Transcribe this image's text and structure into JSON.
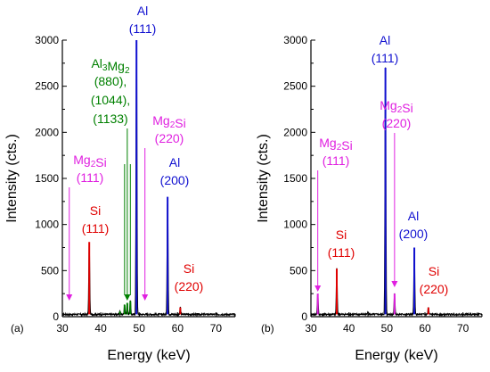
{
  "colors": {
    "spectrum": "#000000",
    "Al": "#1010d0",
    "Si": "#e00000",
    "Mg2Si": "#e020e0",
    "Al3Mg2": "#008000"
  },
  "chart_data": [
    {
      "type": "line",
      "panel_label": "(a)",
      "xlabel": "Energy (keV)",
      "ylabel": "Intensity (cts.)",
      "xlim": [
        30,
        75
      ],
      "ylim": [
        0,
        3000
      ],
      "xticks": [
        30,
        40,
        50,
        60,
        70
      ],
      "yticks": [
        0,
        500,
        1000,
        1500,
        2000,
        2500,
        3000
      ],
      "baseline": 25,
      "peaks": [
        {
          "x": 37.0,
          "y": 810,
          "phase": "Si"
        },
        {
          "x": 45.0,
          "y": 60,
          "phase": "Al3Mg2"
        },
        {
          "x": 46.2,
          "y": 130,
          "phase": "Al3Mg2"
        },
        {
          "x": 46.9,
          "y": 150,
          "phase": "Al3Mg2"
        },
        {
          "x": 47.7,
          "y": 170,
          "phase": "Al3Mg2"
        },
        {
          "x": 49.3,
          "y": 3000,
          "phase": "Al"
        },
        {
          "x": 57.4,
          "y": 1300,
          "phase": "Al"
        },
        {
          "x": 60.7,
          "y": 100,
          "phase": "Si"
        }
      ],
      "annotations": [
        {
          "phase": "Al",
          "label": "Al",
          "sub": "(111)",
          "x": 49.3
        },
        {
          "phase": "Al",
          "label": "Al",
          "sub": "(200)",
          "x": 57.4
        },
        {
          "phase": "Si",
          "label": "Si",
          "sub": "(111)",
          "x": 37.0
        },
        {
          "phase": "Si",
          "label": "Si",
          "sub": "(220)",
          "x": 60.7
        },
        {
          "phase": "Mg2Si",
          "label": "Mg2Si",
          "sub": "(111)",
          "x": 31.8
        },
        {
          "phase": "Mg2Si",
          "label": "Mg2Si",
          "sub": "(220)",
          "x": 51.5
        },
        {
          "phase": "Al3Mg2",
          "label": "Al3Mg2",
          "sub": "(880),\n(1044),\n(1133)",
          "x": 46.9
        }
      ]
    },
    {
      "type": "line",
      "panel_label": "(b)",
      "xlabel": "Energy (keV)",
      "ylabel": "Intensity (cts.)",
      "xlim": [
        30,
        75
      ],
      "ylim": [
        0,
        3000
      ],
      "xticks": [
        30,
        40,
        50,
        60,
        70
      ],
      "yticks": [
        0,
        500,
        1000,
        1500,
        2000,
        2500,
        3000
      ],
      "baseline": 25,
      "peaks": [
        {
          "x": 31.8,
          "y": 250,
          "phase": "Mg2Si"
        },
        {
          "x": 36.8,
          "y": 520,
          "phase": "Si"
        },
        {
          "x": 45.0,
          "y": 60,
          "phase": "none"
        },
        {
          "x": 49.6,
          "y": 2700,
          "phase": "Al"
        },
        {
          "x": 52.0,
          "y": 250,
          "phase": "Mg2Si"
        },
        {
          "x": 57.2,
          "y": 750,
          "phase": "Al"
        },
        {
          "x": 60.9,
          "y": 100,
          "phase": "Si"
        }
      ],
      "annotations": [
        {
          "phase": "Al",
          "label": "Al",
          "sub": "(111)",
          "x": 49.6
        },
        {
          "phase": "Al",
          "label": "Al",
          "sub": "(200)",
          "x": 57.2
        },
        {
          "phase": "Si",
          "label": "Si",
          "sub": "(111)",
          "x": 36.8
        },
        {
          "phase": "Si",
          "label": "Si",
          "sub": "(220)",
          "x": 60.9
        },
        {
          "phase": "Mg2Si",
          "label": "Mg2Si",
          "sub": "(111)",
          "x": 31.8
        },
        {
          "phase": "Mg2Si",
          "label": "Mg2Si",
          "sub": "(220)",
          "x": 52.0
        }
      ]
    }
  ]
}
